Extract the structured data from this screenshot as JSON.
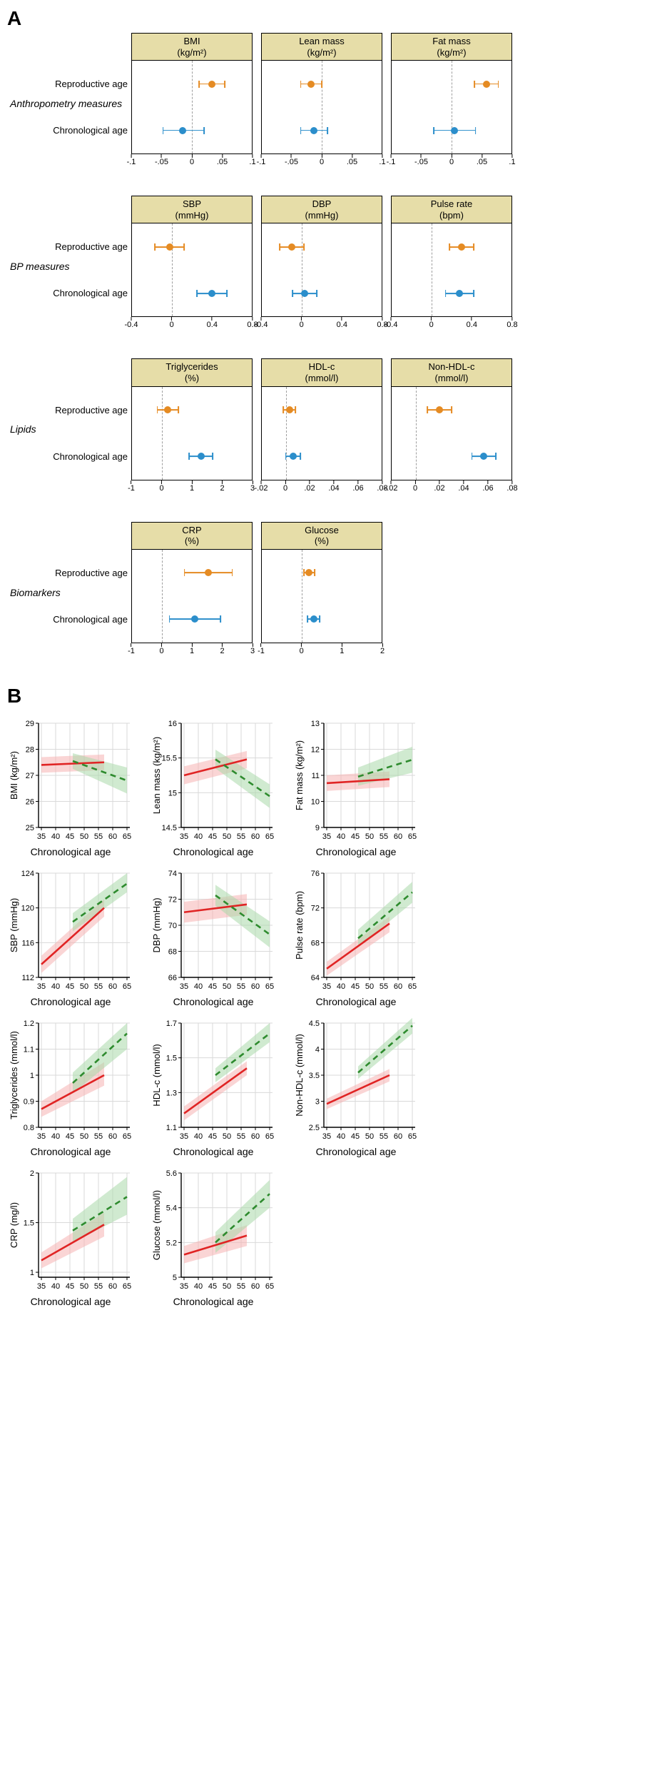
{
  "colors": {
    "reproductive": "#e58b23",
    "chronological": "#2b8ecb",
    "pre_line": "#e02424",
    "pre_fill": "#f5b3b3",
    "post_line": "#2e8b2e",
    "post_fill": "#a9d9a9",
    "header_bg": "#e6dda8",
    "grid": "#d9d9d9",
    "axis": "#000000",
    "bg": "#ffffff",
    "zero_dash": "#9e9e9e"
  },
  "panelA": {
    "label": "A",
    "row_labels": {
      "reproductive": "Reproductive age",
      "chronological": "Chronological age"
    },
    "groups": [
      {
        "label": "Anthropometry measures",
        "panels": [
          {
            "title_line1": "BMI",
            "title_line2": "(kg/m²)",
            "axis_min": -0.1,
            "axis_max": 0.1,
            "ticks": [
              -0.1,
              -0.05,
              0,
              0.05,
              0.1
            ],
            "zero": 0,
            "reproductive": {
              "est": 0.033,
              "lo": 0.012,
              "hi": 0.055
            },
            "chronological": {
              "est": -0.015,
              "lo": -0.048,
              "hi": 0.02
            }
          },
          {
            "title_line1": "Lean mass",
            "title_line2": "(kg/m²)",
            "axis_min": -0.1,
            "axis_max": 0.1,
            "ticks": [
              -0.1,
              -0.05,
              0,
              0.05,
              0.1
            ],
            "zero": 0,
            "reproductive": {
              "est": -0.018,
              "lo": -0.035,
              "hi": 0.0
            },
            "chronological": {
              "est": -0.013,
              "lo": -0.035,
              "hi": 0.01
            }
          },
          {
            "title_line1": "Fat mass",
            "title_line2": "(kg/m²)",
            "axis_min": -0.1,
            "axis_max": 0.1,
            "ticks": [
              -0.1,
              -0.05,
              0,
              0.05,
              0.1
            ],
            "zero": 0,
            "reproductive": {
              "est": 0.058,
              "lo": 0.038,
              "hi": 0.078
            },
            "chronological": {
              "est": 0.005,
              "lo": -0.03,
              "hi": 0.04
            }
          }
        ]
      },
      {
        "label": "BP measures",
        "panels": [
          {
            "title_line1": "SBP",
            "title_line2": "(mmHg)",
            "axis_min": -0.4,
            "axis_max": 0.8,
            "ticks": [
              -0.4,
              0,
              0.4,
              0.8
            ],
            "zero": 0,
            "reproductive": {
              "est": -0.02,
              "lo": -0.17,
              "hi": 0.12
            },
            "chronological": {
              "est": 0.4,
              "lo": 0.25,
              "hi": 0.55
            }
          },
          {
            "title_line1": "DBP",
            "title_line2": "(mmHg)",
            "axis_min": -0.4,
            "axis_max": 0.8,
            "ticks": [
              -0.4,
              0,
              0.4,
              0.8
            ],
            "zero": 0,
            "reproductive": {
              "est": -0.1,
              "lo": -0.22,
              "hi": 0.02
            },
            "chronological": {
              "est": 0.03,
              "lo": -0.09,
              "hi": 0.15
            }
          },
          {
            "title_line1": "Pulse rate",
            "title_line2": "(bpm)",
            "axis_min": -0.4,
            "axis_max": 0.8,
            "ticks": [
              -0.4,
              0,
              0.4,
              0.8
            ],
            "zero": 0,
            "reproductive": {
              "est": 0.3,
              "lo": 0.18,
              "hi": 0.42
            },
            "chronological": {
              "est": 0.28,
              "lo": 0.14,
              "hi": 0.42
            }
          }
        ]
      },
      {
        "label": "Lipids",
        "panels": [
          {
            "title_line1": "Triglycerides",
            "title_line2": "(%)",
            "axis_min": -1,
            "axis_max": 3,
            "ticks": [
              -1,
              0,
              1,
              2,
              3
            ],
            "zero": 0,
            "reproductive": {
              "est": 0.2,
              "lo": -0.15,
              "hi": 0.55
            },
            "chronological": {
              "est": 1.3,
              "lo": 0.9,
              "hi": 1.7
            }
          },
          {
            "title_line1": "HDL-c",
            "title_line2": "(mmol/l)",
            "axis_min": -0.02,
            "axis_max": 0.08,
            "ticks": [
              -0.02,
              0,
              0.02,
              0.04,
              0.06,
              0.08
            ],
            "zero": 0,
            "reproductive": {
              "est": 0.003,
              "lo": -0.002,
              "hi": 0.008
            },
            "chronological": {
              "est": 0.006,
              "lo": 0.0,
              "hi": 0.012
            }
          },
          {
            "title_line1": "Non-HDL-c",
            "title_line2": "(mmol/l)",
            "axis_min": -0.02,
            "axis_max": 0.08,
            "ticks": [
              -0.02,
              0,
              0.02,
              0.04,
              0.06,
              0.08
            ],
            "zero": 0,
            "reproductive": {
              "est": 0.02,
              "lo": 0.01,
              "hi": 0.03
            },
            "chronological": {
              "est": 0.057,
              "lo": 0.047,
              "hi": 0.067
            }
          }
        ]
      },
      {
        "label": "Biomarkers",
        "panels": [
          {
            "title_line1": "CRP",
            "title_line2": "(%)",
            "axis_min": -1,
            "axis_max": 3,
            "ticks": [
              -1,
              0,
              1,
              2,
              3
            ],
            "zero": 0,
            "reproductive": {
              "est": 1.55,
              "lo": 0.75,
              "hi": 2.35
            },
            "chronological": {
              "est": 1.1,
              "lo": 0.25,
              "hi": 1.95
            }
          },
          {
            "title_line1": "Glucose",
            "title_line2": "(%)",
            "axis_min": -1,
            "axis_max": 2,
            "ticks": [
              -1,
              0,
              1,
              2
            ],
            "zero": 0,
            "reproductive": {
              "est": 0.18,
              "lo": 0.05,
              "hi": 0.33
            },
            "chronological": {
              "est": 0.3,
              "lo": 0.15,
              "hi": 0.45
            }
          }
        ]
      }
    ]
  },
  "panelB": {
    "label": "B",
    "xlabel": "Chronological age",
    "x_min": 34,
    "x_max": 66,
    "xticks": [
      35,
      40,
      45,
      50,
      55,
      60,
      65
    ],
    "plots": [
      {
        "ylabel": "BMI (kg/m²)",
        "y_min": 25,
        "y_max": 29,
        "yticks": [
          25,
          26,
          27,
          28,
          29
        ],
        "pre": {
          "x": [
            35,
            57
          ],
          "y": [
            27.4,
            27.5
          ],
          "lo": [
            27.1,
            27.2
          ],
          "hi": [
            27.7,
            27.8
          ]
        },
        "post": {
          "x": [
            46,
            65
          ],
          "y": [
            27.55,
            26.8
          ],
          "lo": [
            27.25,
            26.3
          ],
          "hi": [
            27.85,
            27.3
          ]
        }
      },
      {
        "ylabel": "Lean mass (kg/m²)",
        "y_min": 14.5,
        "y_max": 16,
        "yticks": [
          14.5,
          15,
          15.5,
          16
        ],
        "pre": {
          "x": [
            35,
            57
          ],
          "y": [
            15.25,
            15.48
          ],
          "lo": [
            15.12,
            15.35
          ],
          "hi": [
            15.38,
            15.6
          ]
        },
        "post": {
          "x": [
            46,
            65
          ],
          "y": [
            15.48,
            14.95
          ],
          "lo": [
            15.35,
            14.78
          ],
          "hi": [
            15.62,
            15.12
          ]
        }
      },
      {
        "ylabel": "Fat mass (kg/m²)",
        "y_min": 9,
        "y_max": 13,
        "yticks": [
          9,
          10,
          11,
          12,
          13
        ],
        "pre": {
          "x": [
            35,
            57
          ],
          "y": [
            10.7,
            10.85
          ],
          "lo": [
            10.4,
            10.55
          ],
          "hi": [
            11.0,
            11.15
          ]
        },
        "post": {
          "x": [
            46,
            65
          ],
          "y": [
            10.95,
            11.6
          ],
          "lo": [
            10.6,
            11.1
          ],
          "hi": [
            11.3,
            12.1
          ]
        }
      },
      {
        "ylabel": "SBP (mmHg)",
        "y_min": 112,
        "y_max": 124,
        "yticks": [
          112,
          116,
          120,
          124
        ],
        "pre": {
          "x": [
            35,
            57
          ],
          "y": [
            113.5,
            120.0
          ],
          "lo": [
            112.5,
            119.0
          ],
          "hi": [
            114.5,
            121.0
          ]
        },
        "post": {
          "x": [
            46,
            65
          ],
          "y": [
            118.4,
            122.8
          ],
          "lo": [
            117.3,
            121.8
          ],
          "hi": [
            119.4,
            124.0
          ]
        }
      },
      {
        "ylabel": "DBP (mmHg)",
        "y_min": 66,
        "y_max": 74,
        "yticks": [
          66,
          68,
          70,
          72,
          74
        ],
        "pre": {
          "x": [
            35,
            57
          ],
          "y": [
            71.0,
            71.6
          ],
          "lo": [
            70.2,
            70.8
          ],
          "hi": [
            71.8,
            72.4
          ]
        },
        "post": {
          "x": [
            46,
            65
          ],
          "y": [
            72.3,
            69.3
          ],
          "lo": [
            71.5,
            68.3
          ],
          "hi": [
            73.1,
            70.3
          ]
        }
      },
      {
        "ylabel": "Pulse rate (bpm)",
        "y_min": 64,
        "y_max": 76,
        "yticks": [
          64,
          68,
          72,
          76
        ],
        "pre": {
          "x": [
            35,
            57
          ],
          "y": [
            65.0,
            70.2
          ],
          "lo": [
            64.2,
            69.2
          ],
          "hi": [
            65.8,
            71.0
          ]
        },
        "post": {
          "x": [
            46,
            65
          ],
          "y": [
            68.5,
            73.8
          ],
          "lo": [
            67.5,
            72.6
          ],
          "hi": [
            69.5,
            75.0
          ]
        }
      },
      {
        "ylabel": "Triglycerides (mmol/l)",
        "y_min": 0.8,
        "y_max": 1.2,
        "yticks": [
          0.8,
          0.9,
          1.0,
          1.1,
          1.2
        ],
        "pre": {
          "x": [
            35,
            57
          ],
          "y": [
            0.87,
            1.0
          ],
          "lo": [
            0.84,
            0.96
          ],
          "hi": [
            0.9,
            1.05
          ]
        },
        "post": {
          "x": [
            46,
            65
          ],
          "y": [
            0.97,
            1.16
          ],
          "lo": [
            0.93,
            1.1
          ],
          "hi": [
            1.01,
            1.2
          ]
        }
      },
      {
        "ylabel": "HDL-c (mmol/l)",
        "y_min": 1.1,
        "y_max": 1.7,
        "yticks": [
          1.1,
          1.3,
          1.5,
          1.7
        ],
        "pre": {
          "x": [
            35,
            57
          ],
          "y": [
            1.18,
            1.44
          ],
          "lo": [
            1.14,
            1.4
          ],
          "hi": [
            1.22,
            1.48
          ]
        },
        "post": {
          "x": [
            46,
            65
          ],
          "y": [
            1.4,
            1.64
          ],
          "lo": [
            1.36,
            1.59
          ],
          "hi": [
            1.44,
            1.7
          ]
        }
      },
      {
        "ylabel": "Non-HDL-c (mmol/l)",
        "y_min": 2.5,
        "y_max": 4.5,
        "yticks": [
          2.5,
          3,
          3.5,
          4,
          4.5
        ],
        "pre": {
          "x": [
            35,
            57
          ],
          "y": [
            2.95,
            3.5
          ],
          "lo": [
            2.85,
            3.38
          ],
          "hi": [
            3.05,
            3.62
          ]
        },
        "post": {
          "x": [
            46,
            65
          ],
          "y": [
            3.55,
            4.45
          ],
          "lo": [
            3.43,
            4.3
          ],
          "hi": [
            3.67,
            4.6
          ]
        }
      },
      {
        "ylabel": "CRP (mg/l)",
        "y_min": 0.95,
        "y_max": 2.0,
        "yticks": [
          1,
          1.5,
          2
        ],
        "pre": {
          "x": [
            35,
            57
          ],
          "y": [
            1.12,
            1.48
          ],
          "lo": [
            1.04,
            1.36
          ],
          "hi": [
            1.2,
            1.6
          ]
        },
        "post": {
          "x": [
            46,
            65
          ],
          "y": [
            1.42,
            1.76
          ],
          "lo": [
            1.3,
            1.58
          ],
          "hi": [
            1.54,
            1.96
          ]
        }
      },
      {
        "ylabel": "Glucose (mmol/l)",
        "y_min": 5.0,
        "y_max": 5.6,
        "yticks": [
          5.0,
          5.2,
          5.4,
          5.6
        ],
        "pre": {
          "x": [
            35,
            57
          ],
          "y": [
            5.13,
            5.24
          ],
          "lo": [
            5.08,
            5.18
          ],
          "hi": [
            5.18,
            5.3
          ]
        },
        "post": {
          "x": [
            46,
            65
          ],
          "y": [
            5.2,
            5.48
          ],
          "lo": [
            5.14,
            5.4
          ],
          "hi": [
            5.26,
            5.56
          ]
        }
      }
    ]
  }
}
